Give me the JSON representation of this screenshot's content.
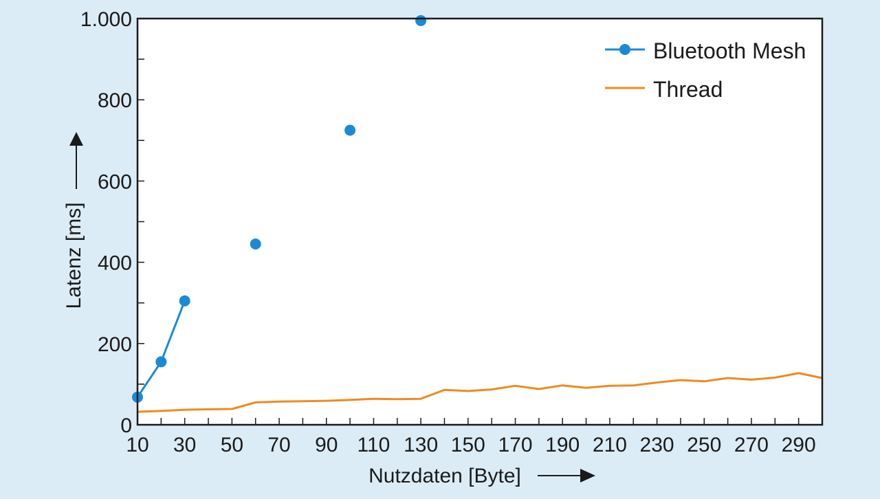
{
  "colors": {
    "background": "#dcecf6",
    "plot_background": "#ffffff",
    "bluetooth": "#1a8ad4",
    "thread": "#f08a1e",
    "axis": "#1a1a1a"
  },
  "chart_data": {
    "type": "line",
    "xlabel": "Nutzdaten [Byte]",
    "ylabel": "Latenz [ms]",
    "xlim": [
      10,
      300
    ],
    "ylim": [
      0,
      1000
    ],
    "x_ticks": [
      10,
      30,
      50,
      70,
      90,
      110,
      130,
      150,
      170,
      190,
      210,
      230,
      250,
      270,
      290
    ],
    "x_tick_labels": [
      "10",
      "30",
      "50",
      "70",
      "90",
      "110",
      "130",
      "150",
      "170",
      "190",
      "210",
      "230",
      "250",
      "270",
      "290"
    ],
    "x_minor_step": 10,
    "y_ticks": [
      0,
      200,
      400,
      600,
      800,
      1000
    ],
    "y_tick_labels": [
      "0",
      "200",
      "400",
      "600",
      "800",
      "1.000"
    ],
    "y_minor_step": 100,
    "grid": false,
    "legend_position": "top-right",
    "series": [
      {
        "name": "Bluetooth Mesh",
        "style": "line+markers",
        "color_key": "bluetooth",
        "segments": [
          [
            [
              10,
              68
            ],
            [
              20,
              155
            ],
            [
              30,
              305
            ]
          ],
          [
            [
              60,
              445
            ]
          ],
          [
            [
              100,
              725
            ]
          ],
          [
            [
              130,
              995
            ]
          ]
        ]
      },
      {
        "name": "Thread",
        "style": "line",
        "color_key": "thread",
        "segments": [
          [
            [
              10,
              32
            ],
            [
              20,
              34
            ],
            [
              30,
              37
            ],
            [
              40,
              38
            ],
            [
              50,
              39
            ],
            [
              60,
              55
            ],
            [
              70,
              57
            ],
            [
              80,
              58
            ],
            [
              90,
              59
            ],
            [
              100,
              61
            ],
            [
              110,
              64
            ],
            [
              120,
              63
            ],
            [
              130,
              64
            ],
            [
              140,
              86
            ],
            [
              150,
              83
            ],
            [
              160,
              87
            ],
            [
              170,
              96
            ],
            [
              180,
              88
            ],
            [
              190,
              97
            ],
            [
              200,
              91
            ],
            [
              210,
              96
            ],
            [
              220,
              97
            ],
            [
              230,
              104
            ],
            [
              240,
              110
            ],
            [
              250,
              107
            ],
            [
              260,
              115
            ],
            [
              270,
              111
            ],
            [
              280,
              116
            ],
            [
              290,
              127
            ],
            [
              300,
              115
            ]
          ]
        ]
      }
    ]
  }
}
